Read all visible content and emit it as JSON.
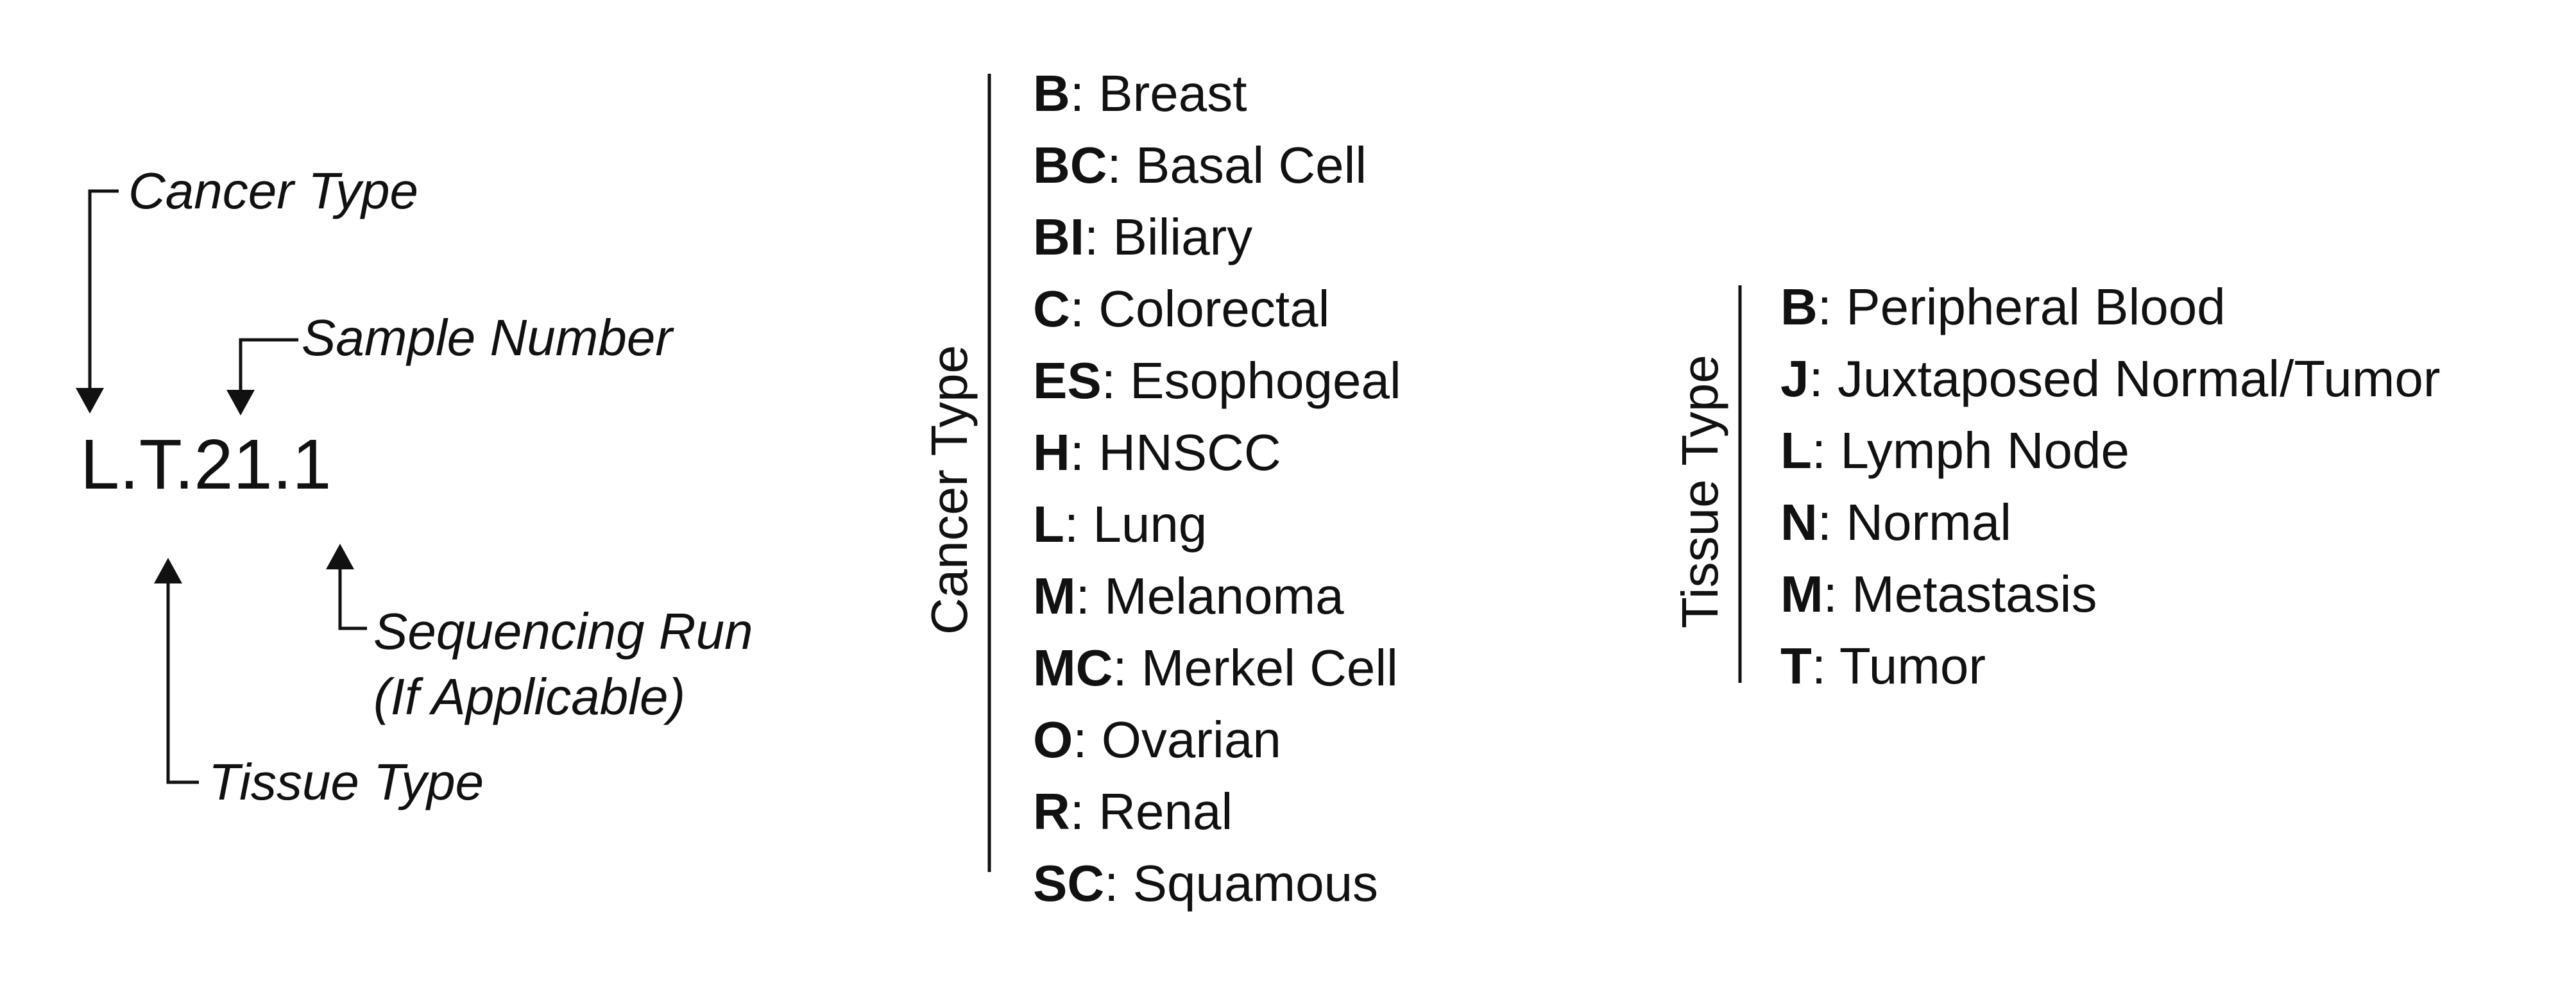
{
  "code": "L.T.21.1",
  "annotations": {
    "cancer_type": "Cancer Type",
    "sample_number": "Sample Number",
    "sequencing_run_1": "Sequencing Run",
    "sequencing_run_2": "(If Applicable)",
    "tissue_type": "Tissue Type"
  },
  "cancer_types": {
    "heading": "Cancer Type",
    "items": [
      {
        "code": "B",
        "label": ": Breast"
      },
      {
        "code": "BC",
        "label": ": Basal Cell"
      },
      {
        "code": "BI",
        "label": ": Biliary"
      },
      {
        "code": "C",
        "label": ": Colorectal"
      },
      {
        "code": "ES",
        "label": ": Esophogeal"
      },
      {
        "code": "H",
        "label": ": HNSCC"
      },
      {
        "code": "L",
        "label": ": Lung"
      },
      {
        "code": "M",
        "label": ": Melanoma"
      },
      {
        "code": "MC",
        "label": ": Merkel Cell"
      },
      {
        "code": "O",
        "label": ": Ovarian"
      },
      {
        "code": "R",
        "label": ": Renal"
      },
      {
        "code": "SC",
        "label": ": Squamous"
      }
    ]
  },
  "tissue_types": {
    "heading": "Tissue Type",
    "items": [
      {
        "code": "B",
        "label": ": Peripheral Blood"
      },
      {
        "code": "J",
        "label": ": Juxtaposed Normal/Tumor"
      },
      {
        "code": "L",
        "label": ": Lymph Node"
      },
      {
        "code": "N",
        "label": ": Normal"
      },
      {
        "code": "M",
        "label": ": Metastasis"
      },
      {
        "code": "T",
        "label": ": Tumor"
      }
    ]
  },
  "colors": {
    "line": "#111111",
    "text": "#111111"
  }
}
